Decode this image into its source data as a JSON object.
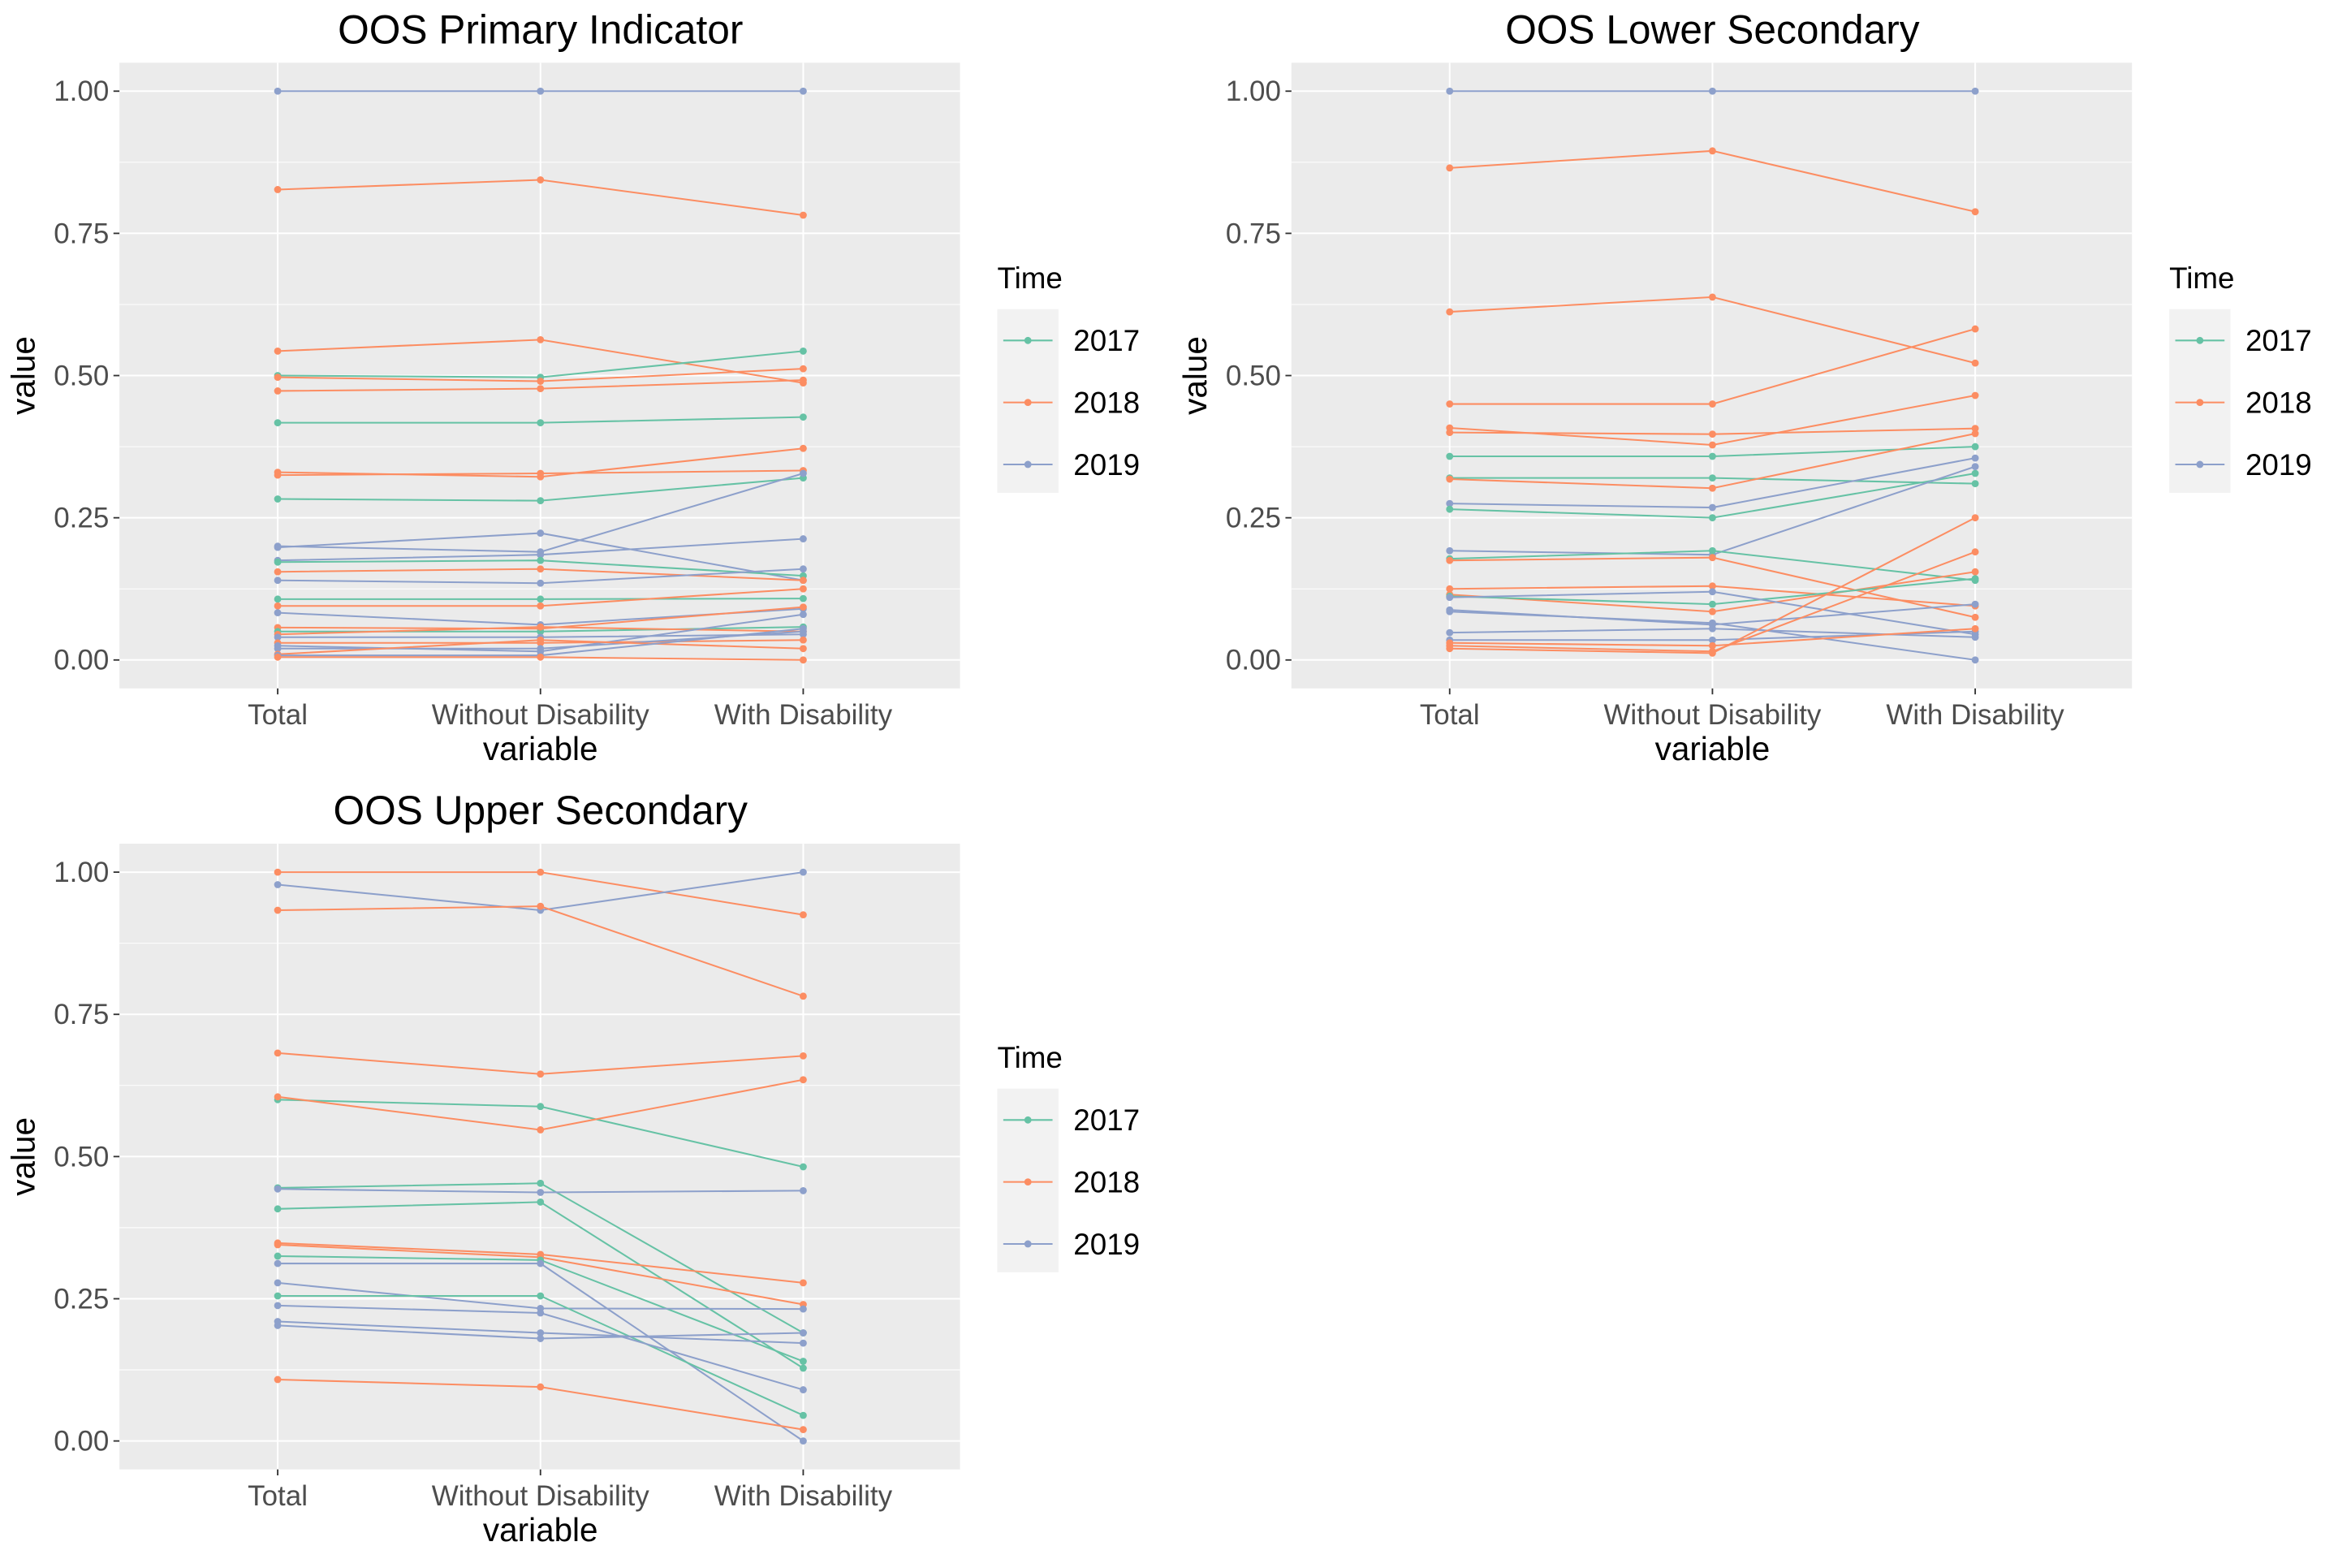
{
  "chart_data": [
    {
      "type": "line",
      "title": "OOS Primary Indicator",
      "xlabel": "variable",
      "ylabel": "value",
      "categories": [
        "Total",
        "Without Disability",
        "With Disability"
      ],
      "ylim": [
        -0.05,
        1.05
      ],
      "yticks": [
        "0.00",
        "0.25",
        "0.50",
        "0.75",
        "1.00"
      ],
      "ytick_values": [
        0,
        0.25,
        0.5,
        0.75,
        1.0
      ],
      "grid": true,
      "legend_title": "Time",
      "legend_position": "right",
      "legend": [
        {
          "label": "2017",
          "color": "#66c2a5"
        },
        {
          "label": "2018",
          "color": "#fc8d62"
        },
        {
          "label": "2019",
          "color": "#8da0cb"
        }
      ],
      "series": [
        {
          "group": "2019",
          "values": [
            1.0,
            1.0,
            1.0
          ]
        },
        {
          "group": "2018",
          "values": [
            0.827,
            0.844,
            0.782
          ]
        },
        {
          "group": "2018",
          "values": [
            0.543,
            0.563,
            0.487
          ]
        },
        {
          "group": "2017",
          "values": [
            0.5,
            0.497,
            0.543
          ]
        },
        {
          "group": "2018",
          "values": [
            0.497,
            0.49,
            0.512
          ]
        },
        {
          "group": "2018",
          "values": [
            0.473,
            0.477,
            0.492
          ]
        },
        {
          "group": "2017",
          "values": [
            0.417,
            0.417,
            0.427
          ]
        },
        {
          "group": "2018",
          "values": [
            0.33,
            0.322,
            0.372
          ]
        },
        {
          "group": "2018",
          "values": [
            0.325,
            0.328,
            0.333
          ]
        },
        {
          "group": "2017",
          "values": [
            0.283,
            0.28,
            0.32
          ]
        },
        {
          "group": "2019",
          "values": [
            0.2,
            0.19,
            0.328
          ]
        },
        {
          "group": "2019",
          "values": [
            0.198,
            0.223,
            0.14
          ]
        },
        {
          "group": "2019",
          "values": [
            0.175,
            0.185,
            0.213
          ]
        },
        {
          "group": "2017",
          "values": [
            0.172,
            0.175,
            0.148
          ]
        },
        {
          "group": "2018",
          "values": [
            0.155,
            0.16,
            0.14
          ]
        },
        {
          "group": "2019",
          "values": [
            0.14,
            0.135,
            0.16
          ]
        },
        {
          "group": "2017",
          "values": [
            0.107,
            0.107,
            0.108
          ]
        },
        {
          "group": "2018",
          "values": [
            0.095,
            0.095,
            0.125
          ]
        },
        {
          "group": "2019",
          "values": [
            0.083,
            0.062,
            0.09
          ]
        },
        {
          "group": "2018",
          "values": [
            0.057,
            0.055,
            0.093
          ]
        },
        {
          "group": "2017",
          "values": [
            0.05,
            0.05,
            0.058
          ]
        },
        {
          "group": "2018",
          "values": [
            0.045,
            0.058,
            0.05
          ]
        },
        {
          "group": "2019",
          "values": [
            0.04,
            0.04,
            0.045
          ]
        },
        {
          "group": "2018",
          "values": [
            0.03,
            0.03,
            0.035
          ]
        },
        {
          "group": "2019",
          "values": [
            0.025,
            0.015,
            0.08
          ]
        },
        {
          "group": "2019",
          "values": [
            0.02,
            0.02,
            0.05
          ]
        },
        {
          "group": "2018",
          "values": [
            0.01,
            0.035,
            0.02
          ]
        },
        {
          "group": "2019",
          "values": [
            0.008,
            0.008,
            0.055
          ]
        },
        {
          "group": "2018",
          "values": [
            0.005,
            0.005,
            0.0
          ]
        }
      ]
    },
    {
      "type": "line",
      "title": "OOS Lower Secondary",
      "xlabel": "variable",
      "ylabel": "value",
      "categories": [
        "Total",
        "Without Disability",
        "With Disability"
      ],
      "ylim": [
        -0.05,
        1.05
      ],
      "yticks": [
        "0.00",
        "0.25",
        "0.50",
        "0.75",
        "1.00"
      ],
      "ytick_values": [
        0,
        0.25,
        0.5,
        0.75,
        1.0
      ],
      "grid": true,
      "legend_title": "Time",
      "legend_position": "right",
      "legend": [
        {
          "label": "2017",
          "color": "#66c2a5"
        },
        {
          "label": "2018",
          "color": "#fc8d62"
        },
        {
          "label": "2019",
          "color": "#8da0cb"
        }
      ],
      "series": [
        {
          "group": "2019",
          "values": [
            1.0,
            1.0,
            1.0
          ]
        },
        {
          "group": "2018",
          "values": [
            0.865,
            0.895,
            0.788
          ]
        },
        {
          "group": "2018",
          "values": [
            0.612,
            0.638,
            0.522
          ]
        },
        {
          "group": "2018",
          "values": [
            0.45,
            0.45,
            0.582
          ]
        },
        {
          "group": "2018",
          "values": [
            0.408,
            0.378,
            0.465
          ]
        },
        {
          "group": "2018",
          "values": [
            0.4,
            0.397,
            0.407
          ]
        },
        {
          "group": "2017",
          "values": [
            0.358,
            0.358,
            0.375
          ]
        },
        {
          "group": "2017",
          "values": [
            0.32,
            0.32,
            0.31
          ]
        },
        {
          "group": "2018",
          "values": [
            0.318,
            0.302,
            0.398
          ]
        },
        {
          "group": "2019",
          "values": [
            0.275,
            0.268,
            0.355
          ]
        },
        {
          "group": "2017",
          "values": [
            0.265,
            0.25,
            0.328
          ]
        },
        {
          "group": "2019",
          "values": [
            0.192,
            0.185,
            0.34
          ]
        },
        {
          "group": "2017",
          "values": [
            0.178,
            0.192,
            0.14
          ]
        },
        {
          "group": "2018",
          "values": [
            0.175,
            0.18,
            0.075
          ]
        },
        {
          "group": "2018",
          "values": [
            0.125,
            0.13,
            0.095
          ]
        },
        {
          "group": "2018",
          "values": [
            0.115,
            0.085,
            0.155
          ]
        },
        {
          "group": "2017",
          "values": [
            0.112,
            0.098,
            0.143
          ]
        },
        {
          "group": "2019",
          "values": [
            0.11,
            0.12,
            0.045
          ]
        },
        {
          "group": "2019",
          "values": [
            0.088,
            0.062,
            0.098
          ]
        },
        {
          "group": "2019",
          "values": [
            0.085,
            0.065,
            0.0
          ]
        },
        {
          "group": "2019",
          "values": [
            0.048,
            0.055,
            0.04
          ]
        },
        {
          "group": "2019",
          "values": [
            0.035,
            0.035,
            0.05
          ]
        },
        {
          "group": "2018",
          "values": [
            0.03,
            0.025,
            0.055
          ]
        },
        {
          "group": "2018",
          "values": [
            0.025,
            0.015,
            0.19
          ]
        },
        {
          "group": "2018",
          "values": [
            0.02,
            0.012,
            0.25
          ]
        }
      ]
    },
    {
      "type": "line",
      "title": "OOS Upper Secondary",
      "xlabel": "variable",
      "ylabel": "value",
      "categories": [
        "Total",
        "Without Disability",
        "With Disability"
      ],
      "ylim": [
        -0.05,
        1.05
      ],
      "yticks": [
        "0.00",
        "0.25",
        "0.50",
        "0.75",
        "1.00"
      ],
      "ytick_values": [
        0,
        0.25,
        0.5,
        0.75,
        1.0
      ],
      "grid": true,
      "legend_title": "Time",
      "legend_position": "right",
      "legend": [
        {
          "label": "2017",
          "color": "#66c2a5"
        },
        {
          "label": "2018",
          "color": "#fc8d62"
        },
        {
          "label": "2019",
          "color": "#8da0cb"
        }
      ],
      "series": [
        {
          "group": "2018",
          "values": [
            1.0,
            1.0,
            0.925
          ]
        },
        {
          "group": "2019",
          "values": [
            0.978,
            0.933,
            1.0
          ]
        },
        {
          "group": "2018",
          "values": [
            0.933,
            0.94,
            0.782
          ]
        },
        {
          "group": "2018",
          "values": [
            0.682,
            0.645,
            0.677
          ]
        },
        {
          "group": "2017",
          "values": [
            0.6,
            0.588,
            0.482
          ]
        },
        {
          "group": "2018",
          "values": [
            0.605,
            0.547,
            0.635
          ]
        },
        {
          "group": "2017",
          "values": [
            0.445,
            0.453,
            0.19
          ]
        },
        {
          "group": "2019",
          "values": [
            0.443,
            0.437,
            0.44
          ]
        },
        {
          "group": "2017",
          "values": [
            0.408,
            0.42,
            0.128
          ]
        },
        {
          "group": "2018",
          "values": [
            0.348,
            0.328,
            0.278
          ]
        },
        {
          "group": "2018",
          "values": [
            0.345,
            0.323,
            0.24
          ]
        },
        {
          "group": "2017",
          "values": [
            0.325,
            0.318,
            0.14
          ]
        },
        {
          "group": "2019",
          "values": [
            0.312,
            0.312,
            0.0
          ]
        },
        {
          "group": "2019",
          "values": [
            0.278,
            0.233,
            0.232
          ]
        },
        {
          "group": "2017",
          "values": [
            0.255,
            0.255,
            0.045
          ]
        },
        {
          "group": "2019",
          "values": [
            0.238,
            0.225,
            0.09
          ]
        },
        {
          "group": "2019",
          "values": [
            0.21,
            0.19,
            0.172
          ]
        },
        {
          "group": "2019",
          "values": [
            0.203,
            0.18,
            0.19
          ]
        },
        {
          "group": "2018",
          "values": [
            0.108,
            0.095,
            0.02
          ]
        }
      ]
    }
  ]
}
